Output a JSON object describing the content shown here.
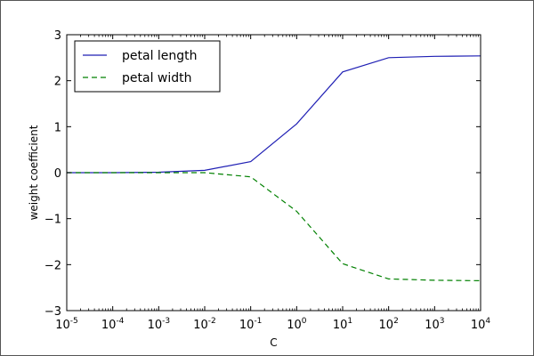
{
  "chart_data": {
    "type": "line",
    "title": "",
    "xlabel": "C",
    "ylabel": "weight coefficient",
    "xscale": "log",
    "xlim": [
      1e-05,
      10000
    ],
    "ylim": [
      -3,
      3
    ],
    "x": [
      1e-05,
      0.0001,
      0.001,
      0.01,
      0.1,
      1,
      10,
      100,
      1000,
      10000
    ],
    "xticks": [
      {
        "base": "10",
        "exp": "-5"
      },
      {
        "base": "10",
        "exp": "-4"
      },
      {
        "base": "10",
        "exp": "-3"
      },
      {
        "base": "10",
        "exp": "-2"
      },
      {
        "base": "10",
        "exp": "-1"
      },
      {
        "base": "10",
        "exp": "0"
      },
      {
        "base": "10",
        "exp": "1"
      },
      {
        "base": "10",
        "exp": "2"
      },
      {
        "base": "10",
        "exp": "3"
      },
      {
        "base": "10",
        "exp": "4"
      }
    ],
    "yticks": [
      "−3",
      "−2",
      "−1",
      "0",
      "1",
      "2",
      "3"
    ],
    "grid": false,
    "legend_position": "top-left",
    "series": [
      {
        "name": "petal length",
        "color": "#1f1fb4",
        "linestyle": "solid",
        "values": [
          0.0,
          0.0,
          0.01,
          0.05,
          0.24,
          1.06,
          2.19,
          2.5,
          2.53,
          2.54
        ]
      },
      {
        "name": "petal width",
        "color": "#008000",
        "linestyle": "dashed",
        "values": [
          0.0,
          0.0,
          0.0,
          0.0,
          -0.09,
          -0.84,
          -1.98,
          -2.31,
          -2.34,
          -2.35
        ]
      }
    ]
  }
}
